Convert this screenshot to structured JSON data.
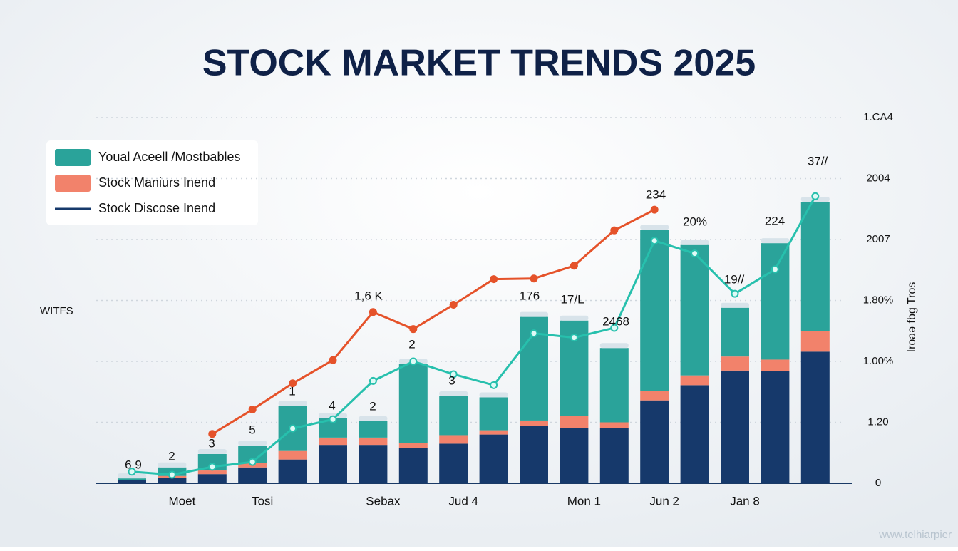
{
  "chart_data": {
    "type": "bar",
    "stacked": true,
    "title": "STOCK MARKET TRENDS 2025",
    "y_label": "WITFS",
    "y2_label": "Iroaə fbg Tros",
    "watermark": "www.telhiarpier",
    "categories": [
      null,
      "Moet",
      null,
      "Tosi",
      null,
      null,
      "Sebax",
      null,
      "Jud 4",
      null,
      null,
      "Mon 1",
      null,
      "Jun 2",
      null,
      "Jan 8",
      null,
      null
    ],
    "series": [
      {
        "name": "Stock Discose Inend",
        "type": "bar",
        "color": "#16396b",
        "values": [
          0.05,
          0.09,
          0.15,
          0.26,
          0.39,
          0.63,
          0.63,
          0.58,
          0.65,
          0.8,
          0.94,
          0.91,
          0.91,
          1.36,
          1.61,
          1.85,
          1.84,
          2.16
        ]
      },
      {
        "name": "Stock Maniurs Inend",
        "type": "bar",
        "color": "#f2826b",
        "values": [
          0,
          0.03,
          0.06,
          0.07,
          0.14,
          0.12,
          0.12,
          0.08,
          0.14,
          0.07,
          0.09,
          0.19,
          0.09,
          0.16,
          0.16,
          0.23,
          0.19,
          0.34
        ]
      },
      {
        "name": "Youal Aceell /Mostbables",
        "type": "bar",
        "color": "#2aa39a",
        "values": [
          0.03,
          0.14,
          0.27,
          0.29,
          0.74,
          0.32,
          0.27,
          1.3,
          0.64,
          0.54,
          1.7,
          1.57,
          1.22,
          2.64,
          2.14,
          0.8,
          1.91,
          2.12
        ]
      },
      {
        "type": "line",
        "color": "#e5522a",
        "values": [
          null,
          null,
          0.81,
          1.21,
          1.64,
          2.02,
          2.81,
          2.53,
          2.93,
          3.35,
          3.36,
          3.57,
          4.15,
          4.49,
          null,
          null,
          null,
          null
        ]
      },
      {
        "type": "line",
        "color": "#27c0ad",
        "values": [
          0.19,
          0.14,
          0.27,
          0.35,
          0.9,
          1.05,
          1.68,
          2.0,
          1.79,
          1.61,
          2.46,
          2.39,
          2.55,
          3.98,
          3.77,
          3.11,
          3.51,
          4.71
        ]
      }
    ],
    "annotations": [
      "6 9",
      "2",
      "3",
      "5",
      "1",
      "4",
      "2",
      "2",
      "3",
      "1,6 K",
      "176",
      "17/L",
      "2468",
      "234",
      "20%",
      "19//",
      "224",
      "37//"
    ],
    "ylim": [
      0,
      6
    ],
    "yticks": [
      0,
      {
        "value": 1,
        "label": "1.20"
      },
      {
        "value": 2,
        "label": "1.00%"
      },
      {
        "value": 3,
        "label": "1.80%"
      },
      {
        "value": 4,
        "label": "2007"
      },
      {
        "value": 5,
        "label": "2004"
      },
      {
        "value": 6,
        "label": "1.CA4"
      }
    ],
    "y_axis_side": "right",
    "grid": true,
    "legend": "top-left"
  }
}
